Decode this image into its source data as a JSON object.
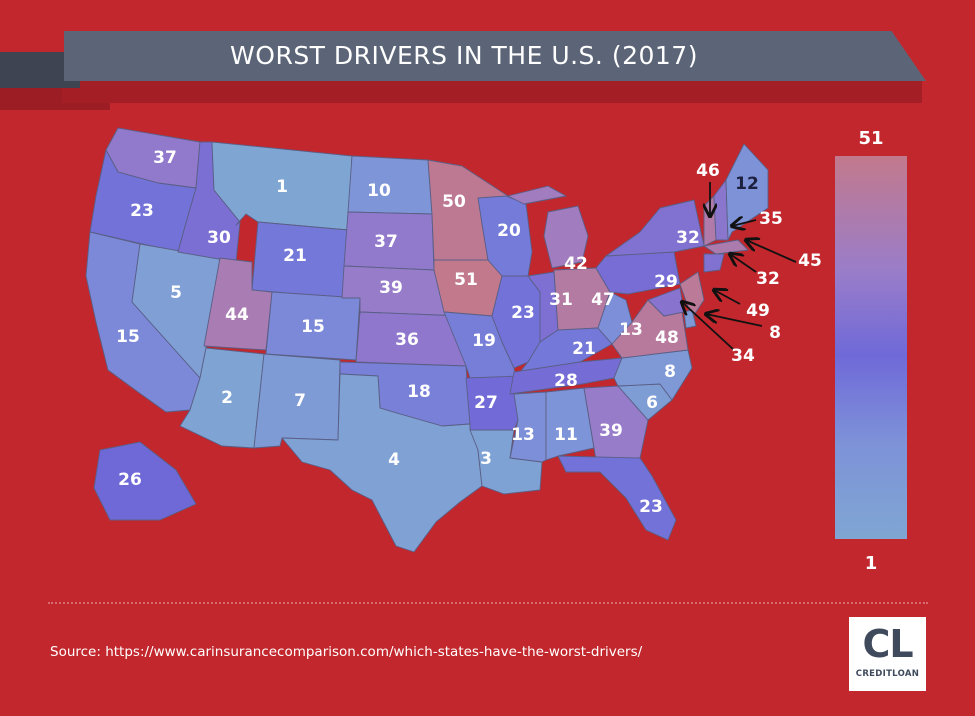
{
  "title": "WORST DRIVERS IN THE U.S. (2017)",
  "legend": {
    "max_label": "51",
    "min_label": "1",
    "color_low": "#7fa6d3",
    "color_mid": "#6f69d8",
    "color_high": "#c2798c"
  },
  "colors": {
    "background": "#c2272d",
    "banner": "#5c6577"
  },
  "states": [
    {
      "id": "WA",
      "value": 37
    },
    {
      "id": "OR",
      "value": 23
    },
    {
      "id": "CA",
      "value": 15
    },
    {
      "id": "NV",
      "value": 5
    },
    {
      "id": "ID",
      "value": 30
    },
    {
      "id": "MT",
      "value": 1
    },
    {
      "id": "WY",
      "value": 21
    },
    {
      "id": "UT",
      "value": 44
    },
    {
      "id": "AZ",
      "value": 2
    },
    {
      "id": "CO",
      "value": 15
    },
    {
      "id": "NM",
      "value": 7
    },
    {
      "id": "ND",
      "value": 10
    },
    {
      "id": "SD",
      "value": 37
    },
    {
      "id": "NE",
      "value": 39
    },
    {
      "id": "KS",
      "value": 36
    },
    {
      "id": "OK",
      "value": 18
    },
    {
      "id": "TX",
      "value": 4
    },
    {
      "id": "MN",
      "value": 50
    },
    {
      "id": "IA",
      "value": 51
    },
    {
      "id": "MO",
      "value": 19
    },
    {
      "id": "AR",
      "value": 27
    },
    {
      "id": "LA",
      "value": 3
    },
    {
      "id": "WI",
      "value": 20
    },
    {
      "id": "IL",
      "value": 23
    },
    {
      "id": "MI",
      "value": 42
    },
    {
      "id": "IN",
      "value": 31
    },
    {
      "id": "OH",
      "value": 47
    },
    {
      "id": "KY",
      "value": 21
    },
    {
      "id": "TN",
      "value": 28
    },
    {
      "id": "MS",
      "value": 13
    },
    {
      "id": "AL",
      "value": 11
    },
    {
      "id": "GA",
      "value": 39
    },
    {
      "id": "FL",
      "value": 23
    },
    {
      "id": "SC",
      "value": 6
    },
    {
      "id": "NC",
      "value": 8
    },
    {
      "id": "VA",
      "value": 48
    },
    {
      "id": "WV",
      "value": 13
    },
    {
      "id": "PA",
      "value": 29
    },
    {
      "id": "NY",
      "value": 32
    },
    {
      "id": "VT",
      "value": 46
    },
    {
      "id": "NH",
      "value": 35
    },
    {
      "id": "ME",
      "value": 12
    },
    {
      "id": "MA",
      "value": 45
    },
    {
      "id": "CT",
      "value": 32
    },
    {
      "id": "NJ",
      "value": 49
    },
    {
      "id": "DE",
      "value": 8
    },
    {
      "id": "MD",
      "value": 34
    },
    {
      "id": "AK",
      "value": 26
    }
  ],
  "source": "Source: https://www.carinsurancecomparison.com/which-states-have-the-worst-drivers/",
  "logo": {
    "mark": "CL",
    "wordmark": "CREDITLOAN"
  }
}
